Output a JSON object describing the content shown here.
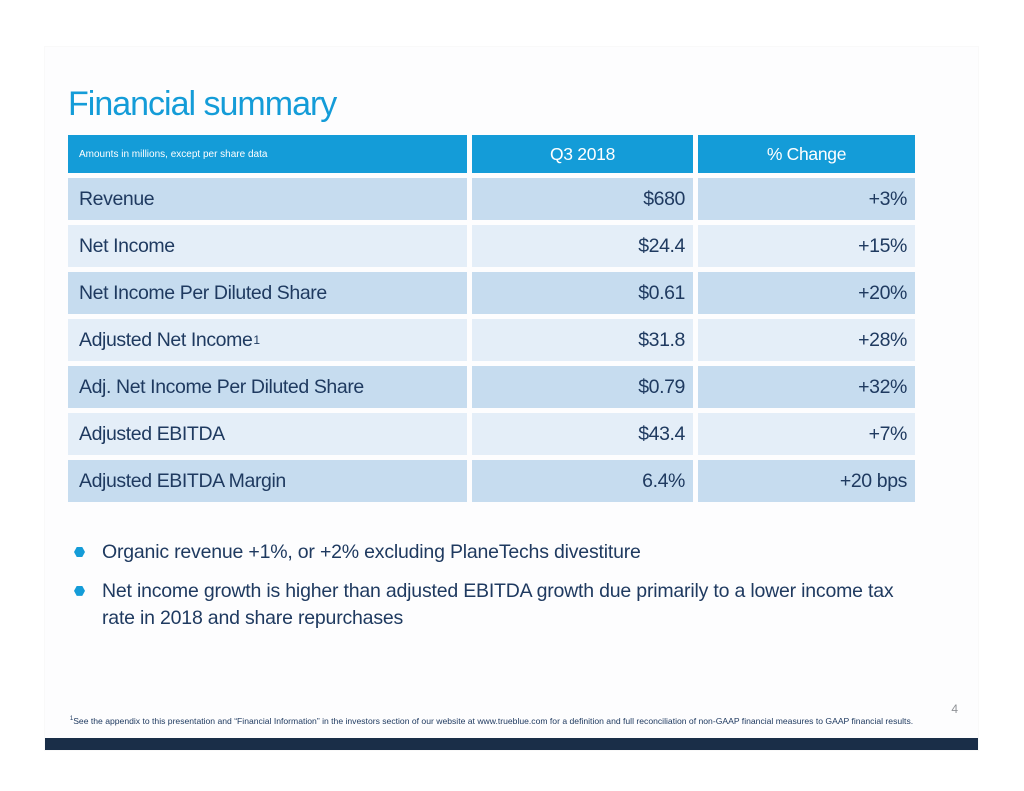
{
  "title": "Financial summary",
  "page_number": "4",
  "colors": {
    "accent_cyan": "#149cd8",
    "row_dark": "#c6dcef",
    "row_light": "#e4eef8",
    "text_navy": "#1f3a60",
    "footer_bar": "#1a2e48"
  },
  "table": {
    "note": "Amounts in millions, except per share data",
    "columns": [
      "Q3 2018",
      "% Change"
    ],
    "rows": [
      {
        "label": "Revenue",
        "sup": "",
        "value": "$680",
        "change": "+3%"
      },
      {
        "label": "Net Income",
        "sup": "",
        "value": "$24.4",
        "change": "+15%"
      },
      {
        "label": "Net Income Per Diluted Share",
        "sup": "",
        "value": "$0.61",
        "change": "+20%"
      },
      {
        "label": "Adjusted Net Income",
        "sup": "1",
        "value": "$31.8",
        "change": "+28%"
      },
      {
        "label": "Adj. Net Income Per Diluted Share",
        "sup": "",
        "value": "$0.79",
        "change": "+32%"
      },
      {
        "label": "Adjusted EBITDA",
        "sup": "",
        "value": "$43.4",
        "change": "+7%"
      },
      {
        "label": "Adjusted EBITDA Margin",
        "sup": "",
        "value": "6.4%",
        "change": "+20 bps"
      }
    ]
  },
  "bullets": [
    "Organic revenue +1%, or +2% excluding PlaneTechs divestiture",
    "Net income growth is higher than adjusted EBITDA growth due primarily to a lower income tax rate in 2018 and share repurchases"
  ],
  "footnote": {
    "sup": "1",
    "text": "See the appendix to this presentation and “Financial Information” in the investors section of our website at www.trueblue.com for a definition and full reconciliation of non-GAAP financial measures to GAAP financial results."
  }
}
